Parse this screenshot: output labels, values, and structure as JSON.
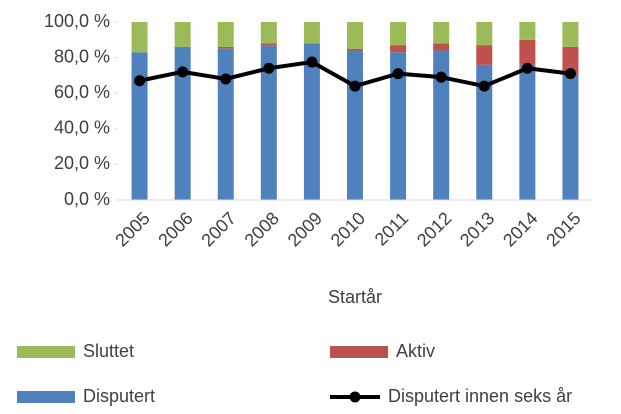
{
  "chart_data": {
    "type": "bar",
    "stacked": true,
    "categories": [
      "2005",
      "2006",
      "2007",
      "2008",
      "2009",
      "2010",
      "2011",
      "2012",
      "2013",
      "2014",
      "2015"
    ],
    "series": [
      {
        "name": "Disputert",
        "color": "#4f81bd",
        "type": "bar",
        "values": [
          83,
          86,
          85,
          87,
          88,
          84,
          83,
          84,
          76,
          76,
          70
        ]
      },
      {
        "name": "Aktiv",
        "color": "#c0504d",
        "type": "bar",
        "values": [
          0,
          0,
          1,
          1,
          0,
          1,
          4,
          4,
          11,
          14,
          16
        ]
      },
      {
        "name": "Sluttet",
        "color": "#9bbb59",
        "type": "bar",
        "values": [
          17,
          14,
          14,
          12,
          12,
          15,
          13,
          12,
          13,
          10,
          14
        ]
      },
      {
        "name": "Disputert innen seks år",
        "color": "#000000",
        "type": "line",
        "values": [
          67,
          72,
          68,
          74,
          77.5,
          64,
          71,
          69,
          64,
          74,
          71
        ]
      }
    ],
    "x_label": "Startår",
    "ylim": [
      0,
      100
    ],
    "yticks": [
      {
        "value": 0,
        "label": "0,0 %"
      },
      {
        "value": 20,
        "label": "20,0 %"
      },
      {
        "value": 40,
        "label": "40,0 %"
      },
      {
        "value": 60,
        "label": "60,0 %"
      },
      {
        "value": 80,
        "label": "80,0 %"
      },
      {
        "value": 100,
        "label": "100,0 %"
      }
    ],
    "grid": false
  }
}
